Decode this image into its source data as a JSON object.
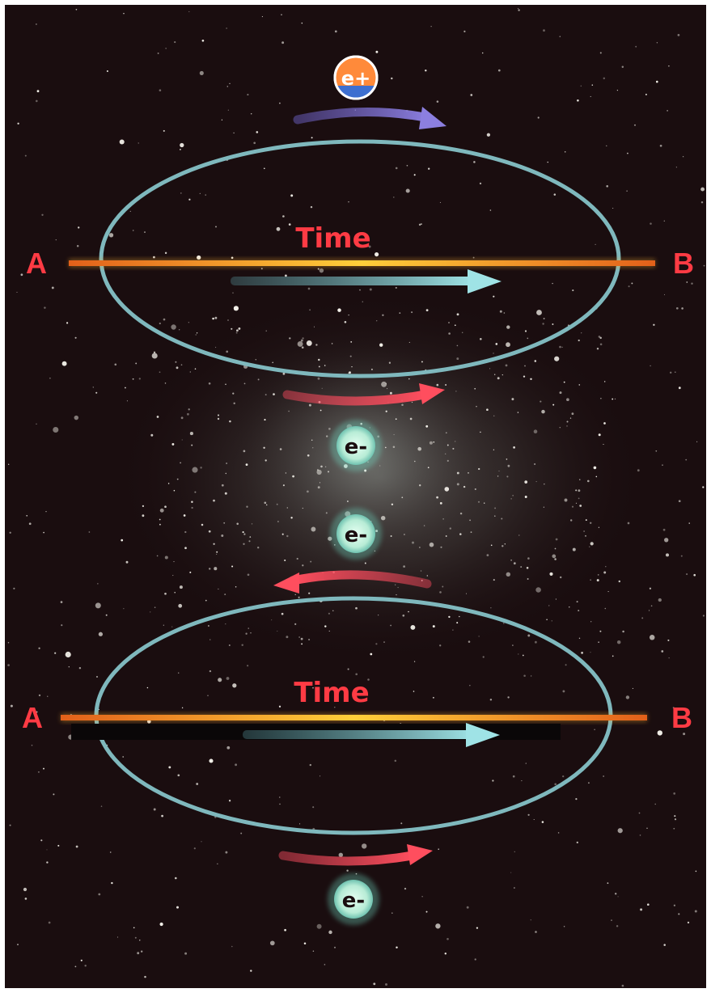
{
  "labels": {
    "point_a": "A",
    "point_b": "B",
    "time": "Time",
    "positron": "e+",
    "electron": "e-"
  },
  "colors": {
    "space_background": "#1a0d0f",
    "time_axis": "#f07a1e",
    "time_axis_glow": "#ffd54a",
    "orbit_ring": "#7fb8bd",
    "arrow_cyan": "#8fd3d8",
    "arrow_red": "#e84658",
    "arrow_blue": "#7468c8",
    "label_red": "#ff3b44",
    "positron_fill": "#ff8a3a",
    "positron_band": "#3d6fd0",
    "electron_fill": "#c9f0df"
  },
  "diagrams": [
    {
      "name": "upper",
      "endpoints": [
        "A",
        "B"
      ],
      "axis_label": "Time",
      "particles_above": [
        "e+"
      ],
      "particles_below": [
        "e-"
      ]
    },
    {
      "name": "lower",
      "endpoints": [
        "A",
        "B"
      ],
      "axis_label": "Time",
      "particles_above": [
        "e-"
      ],
      "particles_below": [
        "e-"
      ]
    }
  ]
}
